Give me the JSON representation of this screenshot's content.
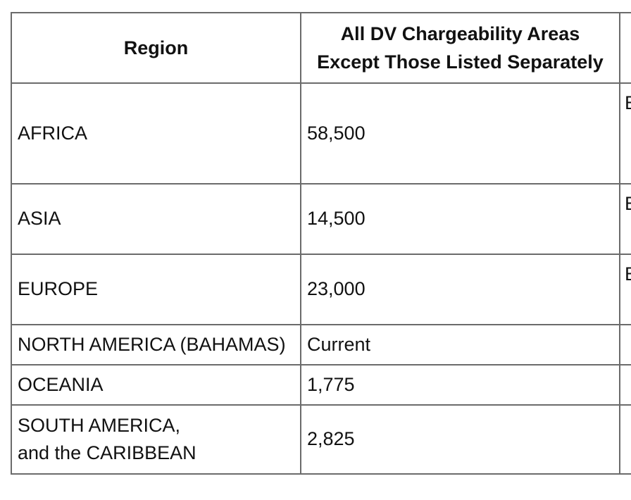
{
  "table": {
    "headers": {
      "region": "Region",
      "all_areas": "All DV Chargeability Areas Except Those Listed Separately",
      "third": ""
    },
    "rows": [
      {
        "region": "AFRICA",
        "value": "58,500",
        "third": "E"
      },
      {
        "region": "ASIA",
        "value": "14,500",
        "third": "E"
      },
      {
        "region": "EUROPE",
        "value": "23,000",
        "third": "E"
      },
      {
        "region": "NORTH AMERICA (BAHAMAS)",
        "value": "Current",
        "third": ""
      },
      {
        "region": "OCEANIA",
        "value": "1,775",
        "third": ""
      },
      {
        "region": "SOUTH AMERICA,\nand the CARIBBEAN",
        "value": "2,825",
        "third": ""
      }
    ]
  }
}
